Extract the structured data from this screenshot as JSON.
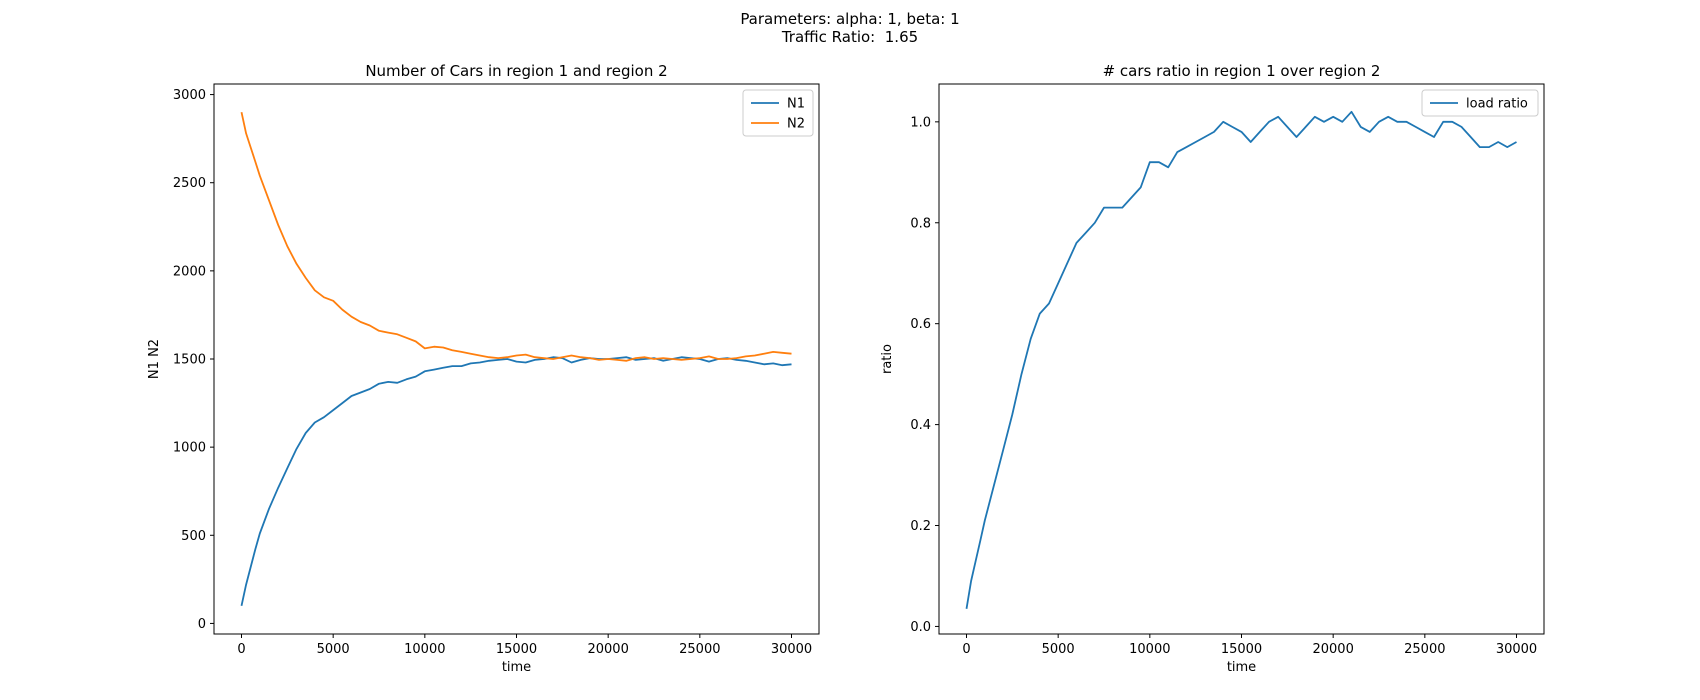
{
  "figure": {
    "suptitle_line1": "Parameters: alpha: 1, beta: 1",
    "suptitle_line2": "Traffic Ratio:  1.65"
  },
  "chart_data": [
    {
      "type": "line",
      "title": "Number of Cars in region 1 and region 2",
      "xlabel": "time",
      "ylabel": "N1 N2",
      "xlim": [
        -1500,
        31500
      ],
      "ylim": [
        -60,
        3060
      ],
      "xticks": [
        0,
        5000,
        10000,
        15000,
        20000,
        25000,
        30000
      ],
      "yticks": [
        0,
        500,
        1000,
        1500,
        2000,
        2500,
        3000
      ],
      "grid": false,
      "legend": "top-right",
      "x": [
        0,
        250,
        500,
        750,
        1000,
        1500,
        2000,
        2500,
        3000,
        3500,
        4000,
        4500,
        5000,
        5500,
        6000,
        6500,
        7000,
        7500,
        8000,
        8500,
        9000,
        9500,
        10000,
        10500,
        11000,
        11500,
        12000,
        12500,
        13000,
        13500,
        14000,
        14500,
        15000,
        15500,
        16000,
        16500,
        17000,
        17500,
        18000,
        18500,
        19000,
        19500,
        20000,
        20500,
        21000,
        21500,
        22000,
        22500,
        23000,
        23500,
        24000,
        24500,
        25000,
        25500,
        26000,
        26500,
        27000,
        27500,
        28000,
        28500,
        29000,
        29500,
        30000
      ],
      "series": [
        {
          "name": "N1",
          "color": "#1f77b4",
          "values": [
            100,
            220,
            320,
            420,
            510,
            650,
            770,
            880,
            990,
            1080,
            1140,
            1170,
            1210,
            1250,
            1290,
            1310,
            1330,
            1360,
            1370,
            1365,
            1385,
            1400,
            1430,
            1440,
            1450,
            1460,
            1460,
            1475,
            1480,
            1490,
            1495,
            1500,
            1485,
            1480,
            1495,
            1500,
            1510,
            1505,
            1480,
            1495,
            1505,
            1500,
            1500,
            1505,
            1510,
            1495,
            1500,
            1505,
            1490,
            1500,
            1510,
            1505,
            1500,
            1485,
            1500,
            1505,
            1495,
            1490,
            1480,
            1470,
            1475,
            1465,
            1470
          ]
        },
        {
          "name": "N2",
          "color": "#ff7f0e",
          "values": [
            2900,
            2780,
            2700,
            2620,
            2540,
            2400,
            2260,
            2140,
            2040,
            1960,
            1890,
            1850,
            1830,
            1780,
            1740,
            1710,
            1690,
            1660,
            1650,
            1640,
            1620,
            1600,
            1560,
            1570,
            1565,
            1550,
            1540,
            1530,
            1520,
            1510,
            1505,
            1510,
            1520,
            1525,
            1510,
            1505,
            1500,
            1510,
            1520,
            1510,
            1505,
            1495,
            1500,
            1495,
            1490,
            1505,
            1510,
            1500,
            1505,
            1500,
            1495,
            1500,
            1505,
            1515,
            1500,
            1500,
            1505,
            1515,
            1520,
            1530,
            1540,
            1535,
            1530
          ]
        }
      ]
    },
    {
      "type": "line",
      "title": "# cars ratio in region 1 over region 2",
      "xlabel": "time",
      "ylabel": "ratio",
      "xlim": [
        -1500,
        31500
      ],
      "ylim": [
        -0.015,
        1.075
      ],
      "xticks": [
        0,
        5000,
        10000,
        15000,
        20000,
        25000,
        30000
      ],
      "yticks": [
        0.0,
        0.2,
        0.4,
        0.6,
        0.8,
        1.0
      ],
      "grid": false,
      "legend": "top-right",
      "x": [
        0,
        250,
        500,
        750,
        1000,
        1500,
        2000,
        2500,
        3000,
        3500,
        4000,
        4500,
        5000,
        5500,
        6000,
        6500,
        7000,
        7500,
        8000,
        8500,
        9000,
        9500,
        10000,
        10500,
        11000,
        11500,
        12000,
        12500,
        13000,
        13500,
        14000,
        14500,
        15000,
        15500,
        16000,
        16500,
        17000,
        17500,
        18000,
        18500,
        19000,
        19500,
        20000,
        20500,
        21000,
        21500,
        22000,
        22500,
        23000,
        23500,
        24000,
        24500,
        25000,
        25500,
        26000,
        26500,
        27000,
        27500,
        28000,
        28500,
        29000,
        29500,
        30000
      ],
      "series": [
        {
          "name": "load ratio",
          "color": "#1f77b4",
          "values": [
            0.035,
            0.09,
            0.13,
            0.17,
            0.21,
            0.28,
            0.35,
            0.42,
            0.5,
            0.57,
            0.62,
            0.64,
            0.68,
            0.72,
            0.76,
            0.78,
            0.8,
            0.83,
            0.83,
            0.83,
            0.85,
            0.87,
            0.92,
            0.92,
            0.91,
            0.94,
            0.95,
            0.96,
            0.97,
            0.98,
            1.0,
            0.99,
            0.98,
            0.96,
            0.98,
            1.0,
            1.01,
            0.99,
            0.97,
            0.99,
            1.01,
            1.0,
            1.01,
            1.0,
            1.02,
            0.99,
            0.98,
            1.0,
            1.01,
            1.0,
            1.0,
            0.99,
            0.98,
            0.97,
            1.0,
            1.0,
            0.99,
            0.97,
            0.95,
            0.95,
            0.96,
            0.95,
            0.96
          ]
        }
      ]
    }
  ]
}
